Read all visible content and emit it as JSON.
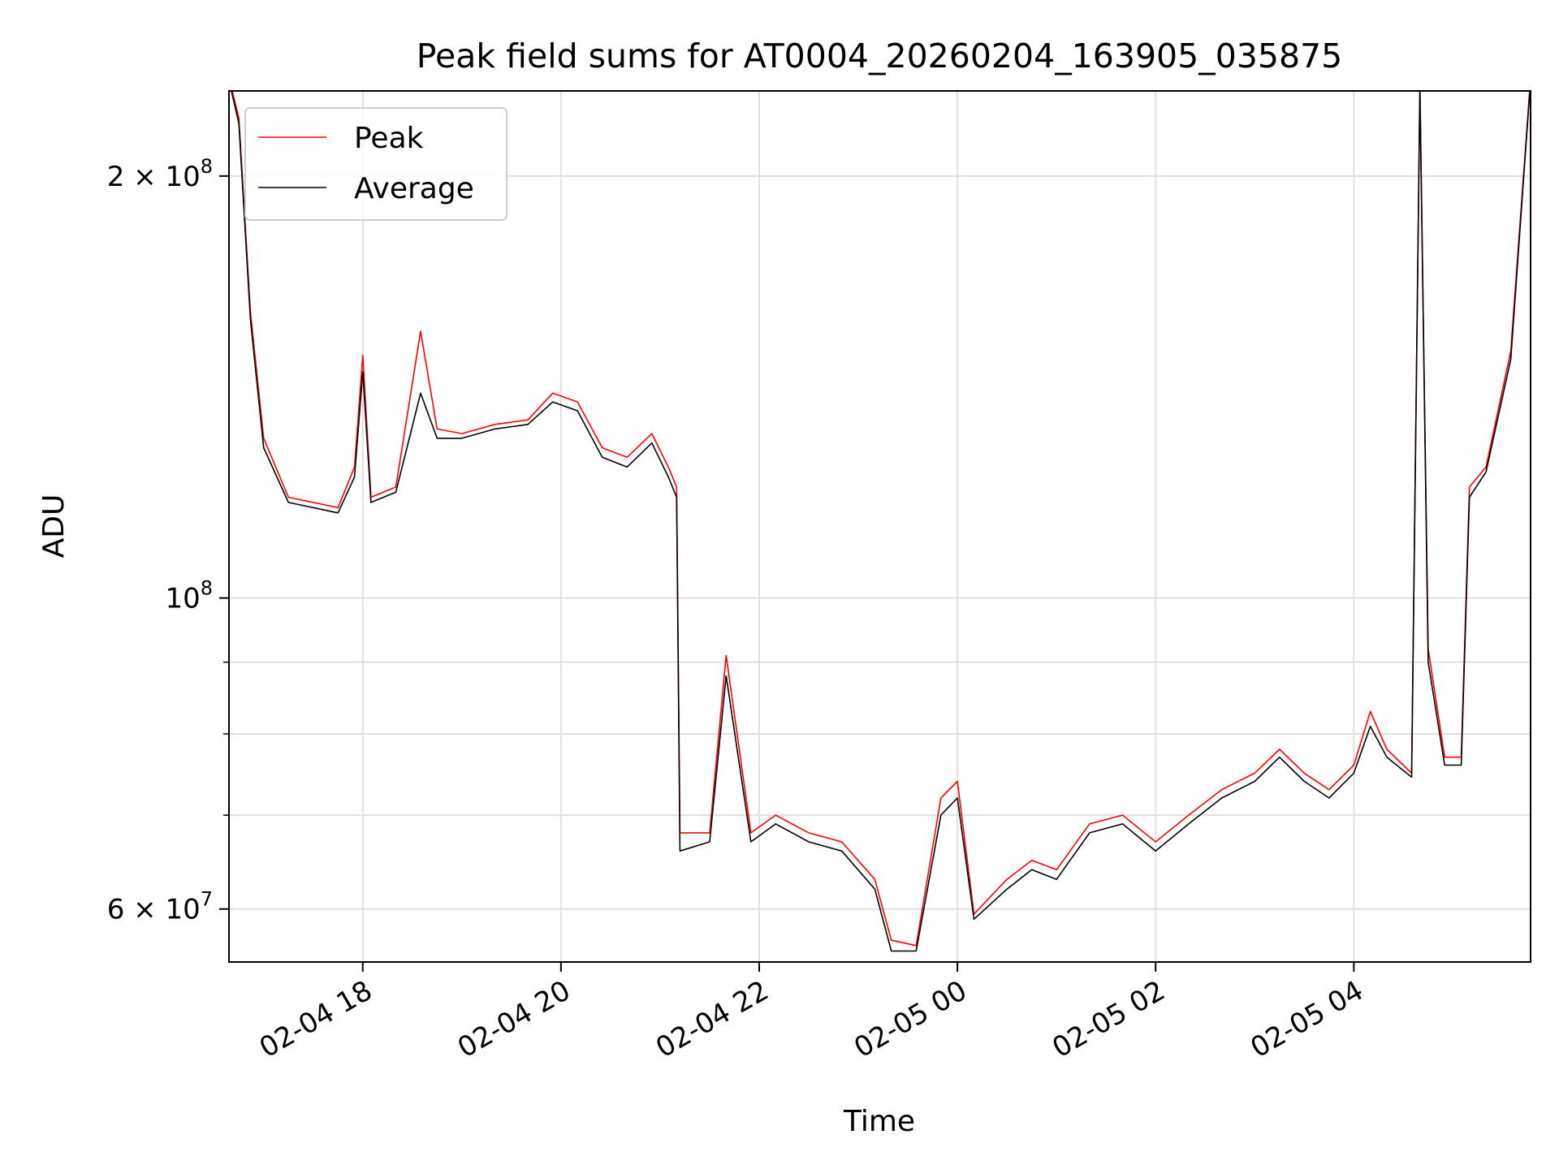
{
  "chart_data": {
    "type": "line",
    "title": "Peak field sums for AT0004_20260204_163905_035875",
    "xlabel": "Time",
    "ylabel": "ADU",
    "yscale": "log",
    "grid": true,
    "legend_position": "top-left",
    "xlim": [
      "2026-02-04 16:39",
      "2026-02-05 05:47"
    ],
    "ylim": [
      55000000,
      230000000
    ],
    "xticks": [
      {
        "t": "2026-02-04 18:00",
        "label": "02-04 18"
      },
      {
        "t": "2026-02-04 20:00",
        "label": "02-04 20"
      },
      {
        "t": "2026-02-04 22:00",
        "label": "02-04 22"
      },
      {
        "t": "2026-02-05 00:00",
        "label": "02-05 00"
      },
      {
        "t": "2026-02-05 02:00",
        "label": "02-05 02"
      },
      {
        "t": "2026-02-05 04:00",
        "label": "02-05 04"
      }
    ],
    "yticks_major": [
      {
        "value": 60000000,
        "mantissa": "6",
        "exp": "7"
      },
      {
        "value": 100000000,
        "mantissa": "",
        "exp": "8"
      },
      {
        "value": 200000000,
        "mantissa": "2",
        "exp": "8"
      }
    ],
    "yticks_minor": [
      70000000,
      80000000,
      90000000
    ],
    "series": [
      {
        "name": "Peak",
        "color": "#ff0000",
        "points": [
          [
            "2026-02-04 16:39",
            235000000
          ],
          [
            "2026-02-04 16:45",
            220000000
          ],
          [
            "2026-02-04 16:52",
            160000000
          ],
          [
            "2026-02-04 17:00",
            130000000
          ],
          [
            "2026-02-04 17:15",
            118000000
          ],
          [
            "2026-02-04 17:30",
            117000000
          ],
          [
            "2026-02-04 17:45",
            116000000
          ],
          [
            "2026-02-04 17:55",
            124000000
          ],
          [
            "2026-02-04 18:00",
            149000000
          ],
          [
            "2026-02-04 18:05",
            118000000
          ],
          [
            "2026-02-04 18:20",
            120000000
          ],
          [
            "2026-02-04 18:35",
            155000000
          ],
          [
            "2026-02-04 18:45",
            132000000
          ],
          [
            "2026-02-04 19:00",
            131000000
          ],
          [
            "2026-02-04 19:20",
            133000000
          ],
          [
            "2026-02-04 19:40",
            134000000
          ],
          [
            "2026-02-04 19:55",
            140000000
          ],
          [
            "2026-02-04 20:10",
            138000000
          ],
          [
            "2026-02-04 20:25",
            128000000
          ],
          [
            "2026-02-04 20:40",
            126000000
          ],
          [
            "2026-02-04 20:55",
            131000000
          ],
          [
            "2026-02-04 21:05",
            124000000
          ],
          [
            "2026-02-04 21:10",
            120000000
          ],
          [
            "2026-02-04 21:12",
            68000000
          ],
          [
            "2026-02-04 21:30",
            68000000
          ],
          [
            "2026-02-04 21:40",
            91000000
          ],
          [
            "2026-02-04 21:55",
            68000000
          ],
          [
            "2026-02-04 22:10",
            70000000
          ],
          [
            "2026-02-04 22:30",
            68000000
          ],
          [
            "2026-02-04 22:50",
            67000000
          ],
          [
            "2026-02-04 23:10",
            63000000
          ],
          [
            "2026-02-04 23:20",
            57000000
          ],
          [
            "2026-02-04 23:35",
            56500000
          ],
          [
            "2026-02-04 23:50",
            72000000
          ],
          [
            "2026-02-05 00:00",
            74000000
          ],
          [
            "2026-02-05 00:10",
            59500000
          ],
          [
            "2026-02-05 00:30",
            63000000
          ],
          [
            "2026-02-05 00:45",
            65000000
          ],
          [
            "2026-02-05 01:00",
            64000000
          ],
          [
            "2026-02-05 01:20",
            69000000
          ],
          [
            "2026-02-05 01:40",
            70000000
          ],
          [
            "2026-02-05 02:00",
            67000000
          ],
          [
            "2026-02-05 02:20",
            70000000
          ],
          [
            "2026-02-05 02:40",
            73000000
          ],
          [
            "2026-02-05 03:00",
            75000000
          ],
          [
            "2026-02-05 03:15",
            78000000
          ],
          [
            "2026-02-05 03:30",
            75000000
          ],
          [
            "2026-02-05 03:45",
            73000000
          ],
          [
            "2026-02-05 04:00",
            76000000
          ],
          [
            "2026-02-05 04:10",
            83000000
          ],
          [
            "2026-02-05 04:20",
            78000000
          ],
          [
            "2026-02-05 04:35",
            75000000
          ],
          [
            "2026-02-05 04:40",
            230000000
          ],
          [
            "2026-02-05 04:45",
            92000000
          ],
          [
            "2026-02-05 04:55",
            77000000
          ],
          [
            "2026-02-05 05:05",
            77000000
          ],
          [
            "2026-02-05 05:10",
            120000000
          ],
          [
            "2026-02-05 05:20",
            124000000
          ],
          [
            "2026-02-05 05:35",
            150000000
          ],
          [
            "2026-02-05 05:47",
            235000000
          ]
        ]
      },
      {
        "name": "Average",
        "color": "#000000",
        "points": [
          [
            "2026-02-04 16:39",
            234000000
          ],
          [
            "2026-02-04 16:45",
            218000000
          ],
          [
            "2026-02-04 16:52",
            158000000
          ],
          [
            "2026-02-04 17:00",
            128000000
          ],
          [
            "2026-02-04 17:15",
            117000000
          ],
          [
            "2026-02-04 17:30",
            116000000
          ],
          [
            "2026-02-04 17:45",
            115000000
          ],
          [
            "2026-02-04 17:55",
            122000000
          ],
          [
            "2026-02-04 18:00",
            145000000
          ],
          [
            "2026-02-04 18:05",
            117000000
          ],
          [
            "2026-02-04 18:20",
            119000000
          ],
          [
            "2026-02-04 18:35",
            140000000
          ],
          [
            "2026-02-04 18:45",
            130000000
          ],
          [
            "2026-02-04 19:00",
            130000000
          ],
          [
            "2026-02-04 19:20",
            132000000
          ],
          [
            "2026-02-04 19:40",
            133000000
          ],
          [
            "2026-02-04 19:55",
            138000000
          ],
          [
            "2026-02-04 20:10",
            136000000
          ],
          [
            "2026-02-04 20:25",
            126000000
          ],
          [
            "2026-02-04 20:40",
            124000000
          ],
          [
            "2026-02-04 20:55",
            129000000
          ],
          [
            "2026-02-04 21:05",
            122000000
          ],
          [
            "2026-02-04 21:10",
            118000000
          ],
          [
            "2026-02-04 21:12",
            66000000
          ],
          [
            "2026-02-04 21:30",
            67000000
          ],
          [
            "2026-02-04 21:40",
            88000000
          ],
          [
            "2026-02-04 21:55",
            67000000
          ],
          [
            "2026-02-04 22:10",
            69000000
          ],
          [
            "2026-02-04 22:30",
            67000000
          ],
          [
            "2026-02-04 22:50",
            66000000
          ],
          [
            "2026-02-04 23:10",
            62000000
          ],
          [
            "2026-02-04 23:20",
            56000000
          ],
          [
            "2026-02-04 23:35",
            56000000
          ],
          [
            "2026-02-04 23:50",
            70000000
          ],
          [
            "2026-02-05 00:00",
            72000000
          ],
          [
            "2026-02-05 00:10",
            59000000
          ],
          [
            "2026-02-05 00:30",
            62000000
          ],
          [
            "2026-02-05 00:45",
            64000000
          ],
          [
            "2026-02-05 01:00",
            63000000
          ],
          [
            "2026-02-05 01:20",
            68000000
          ],
          [
            "2026-02-05 01:40",
            69000000
          ],
          [
            "2026-02-05 02:00",
            66000000
          ],
          [
            "2026-02-05 02:20",
            69000000
          ],
          [
            "2026-02-05 02:40",
            72000000
          ],
          [
            "2026-02-05 03:00",
            74000000
          ],
          [
            "2026-02-05 03:15",
            77000000
          ],
          [
            "2026-02-05 03:30",
            74000000
          ],
          [
            "2026-02-05 03:45",
            72000000
          ],
          [
            "2026-02-05 04:00",
            75000000
          ],
          [
            "2026-02-05 04:10",
            81000000
          ],
          [
            "2026-02-05 04:20",
            77000000
          ],
          [
            "2026-02-05 04:35",
            74500000
          ],
          [
            "2026-02-05 04:40",
            232000000
          ],
          [
            "2026-02-05 04:45",
            90000000
          ],
          [
            "2026-02-05 04:55",
            76000000
          ],
          [
            "2026-02-05 05:05",
            76000000
          ],
          [
            "2026-02-05 05:10",
            118000000
          ],
          [
            "2026-02-05 05:20",
            123000000
          ],
          [
            "2026-02-05 05:35",
            148000000
          ],
          [
            "2026-02-05 05:47",
            234000000
          ]
        ]
      }
    ]
  }
}
